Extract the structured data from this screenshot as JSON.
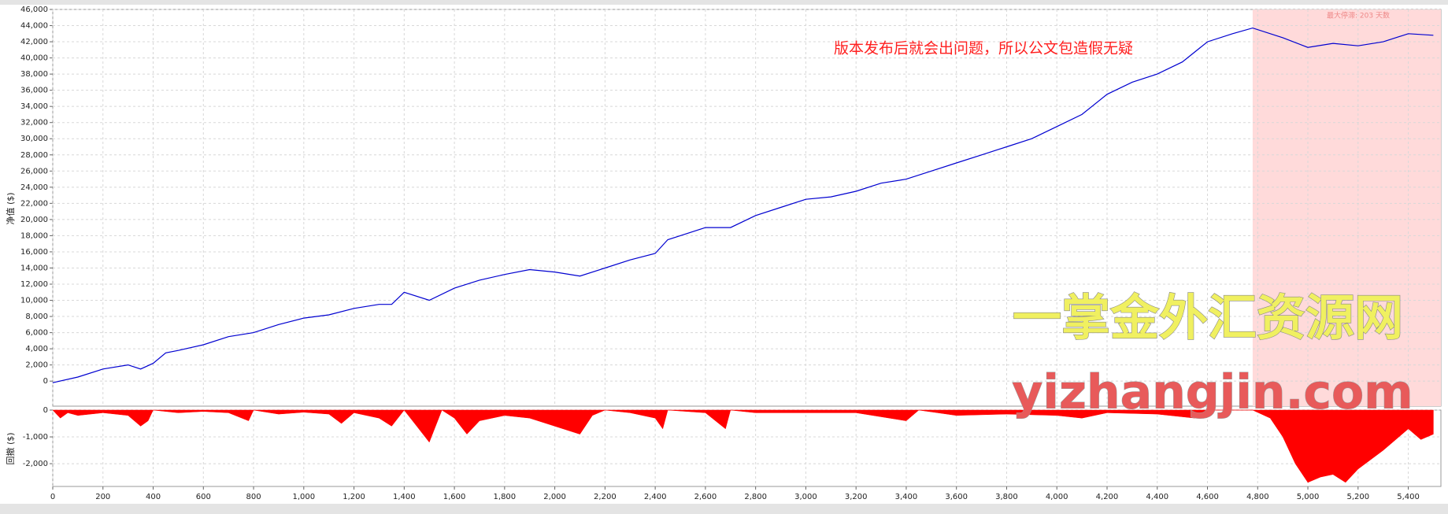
{
  "chart_data": [
    {
      "type": "line",
      "y_label": "净值 ($)",
      "annotation": "版本发布后就会出问题，所以公文包造假无疑",
      "stagnation_label": "最大停滞: 203 天数",
      "watermark": "一掌金外汇资源网",
      "watermark_url": "yizhangjin.com",
      "shaded_x": [
        4780,
        5530
      ],
      "shade_color": "#ffdada",
      "xlim": [
        0,
        5530
      ],
      "ylim": [
        -3100,
        46000
      ],
      "yticks": [
        {
          "value": 0,
          "label": "0"
        },
        {
          "value": 2000,
          "label": "2,000"
        },
        {
          "value": 4000,
          "label": "4,000"
        },
        {
          "value": 6000,
          "label": "6,000"
        },
        {
          "value": 8000,
          "label": "8,000"
        },
        {
          "value": 10000,
          "label": "10,000"
        },
        {
          "value": 12000,
          "label": "12,000"
        },
        {
          "value": 14000,
          "label": "14,000"
        },
        {
          "value": 16000,
          "label": "16,000"
        },
        {
          "value": 18000,
          "label": "18,000"
        },
        {
          "value": 20000,
          "label": "20,000"
        },
        {
          "value": 22000,
          "label": "22,000"
        },
        {
          "value": 24000,
          "label": "24,000"
        },
        {
          "value": 26000,
          "label": "26,000"
        },
        {
          "value": 28000,
          "label": "28,000"
        },
        {
          "value": 30000,
          "label": "30,000"
        },
        {
          "value": 32000,
          "label": "32,000"
        },
        {
          "value": 34000,
          "label": "34,000"
        },
        {
          "value": 36000,
          "label": "36,000"
        },
        {
          "value": 38000,
          "label": "38,000"
        },
        {
          "value": 40000,
          "label": "40,000"
        },
        {
          "value": 42000,
          "label": "42,000"
        },
        {
          "value": 44000,
          "label": "44,000"
        },
        {
          "value": 46000,
          "label": "46,000"
        }
      ],
      "grid": true,
      "x": [
        0,
        100,
        200,
        300,
        350,
        400,
        450,
        500,
        600,
        700,
        800,
        900,
        1000,
        1100,
        1200,
        1300,
        1350,
        1400,
        1500,
        1600,
        1700,
        1800,
        1900,
        2000,
        2100,
        2200,
        2300,
        2400,
        2450,
        2500,
        2600,
        2700,
        2800,
        2900,
        3000,
        3100,
        3200,
        3300,
        3400,
        3500,
        3600,
        3700,
        3800,
        3900,
        4000,
        4100,
        4200,
        4300,
        4400,
        4500,
        4600,
        4700,
        4780,
        4900,
        5000,
        5100,
        5200,
        5300,
        5400,
        5500
      ],
      "series": [
        {
          "color": "#0000d0",
          "values": [
            -200,
            500,
            1500,
            2000,
            1500,
            2200,
            3500,
            3800,
            4500,
            5500,
            6000,
            7000,
            7800,
            8200,
            9000,
            9500,
            9500,
            11000,
            10000,
            11500,
            12500,
            13200,
            13800,
            13500,
            13000,
            14000,
            15000,
            15800,
            17500,
            18000,
            19000,
            19000,
            20500,
            21500,
            22500,
            22800,
            23500,
            24500,
            25000,
            26000,
            27000,
            28000,
            29000,
            30000,
            31500,
            33000,
            35500,
            37000,
            38000,
            39500,
            42000,
            43000,
            43700,
            42500,
            41300,
            41800,
            41500,
            42000,
            43000,
            42800
          ]
        }
      ]
    },
    {
      "type": "area",
      "y_label": "回撤 ($)",
      "xlim": [
        0,
        5530
      ],
      "ylim": [
        -2850,
        0
      ],
      "yticks": [
        {
          "value": 0,
          "label": "0"
        },
        {
          "value": -1000,
          "label": "-1,000"
        },
        {
          "value": -2000,
          "label": "-2,000"
        }
      ],
      "xticks": [
        {
          "value": 0,
          "label": "0"
        },
        {
          "value": 200,
          "label": "200"
        },
        {
          "value": 400,
          "label": "400"
        },
        {
          "value": 600,
          "label": "600"
        },
        {
          "value": 800,
          "label": "800"
        },
        {
          "value": 1000,
          "label": "1,000"
        },
        {
          "value": 1200,
          "label": "1,200"
        },
        {
          "value": 1400,
          "label": "1,400"
        },
        {
          "value": 1600,
          "label": "1,600"
        },
        {
          "value": 1800,
          "label": "1,800"
        },
        {
          "value": 2000,
          "label": "2,000"
        },
        {
          "value": 2200,
          "label": "2,200"
        },
        {
          "value": 2400,
          "label": "2,400"
        },
        {
          "value": 2600,
          "label": "2,600"
        },
        {
          "value": 2800,
          "label": "2,800"
        },
        {
          "value": 3000,
          "label": "3,000"
        },
        {
          "value": 3200,
          "label": "3,200"
        },
        {
          "value": 3400,
          "label": "3,400"
        },
        {
          "value": 3600,
          "label": "3,600"
        },
        {
          "value": 3800,
          "label": "3,800"
        },
        {
          "value": 4000,
          "label": "4,000"
        },
        {
          "value": 4200,
          "label": "4,200"
        },
        {
          "value": 4400,
          "label": "4,400"
        },
        {
          "value": 4600,
          "label": "4,600"
        },
        {
          "value": 4800,
          "label": "4,800"
        },
        {
          "value": 5000,
          "label": "5,000"
        },
        {
          "value": 5200,
          "label": "5,200"
        },
        {
          "value": 5400,
          "label": "5,400"
        }
      ],
      "grid": true,
      "x": [
        0,
        30,
        60,
        100,
        150,
        200,
        300,
        350,
        380,
        400,
        500,
        600,
        700,
        780,
        800,
        900,
        1000,
        1100,
        1150,
        1200,
        1300,
        1350,
        1400,
        1450,
        1500,
        1550,
        1600,
        1650,
        1700,
        1800,
        1900,
        2000,
        2100,
        2150,
        2200,
        2300,
        2400,
        2430,
        2450,
        2600,
        2680,
        2700,
        2800,
        3000,
        3200,
        3400,
        3450,
        3600,
        3800,
        4000,
        4100,
        4200,
        4400,
        4550,
        4600,
        4780,
        4850,
        4900,
        4950,
        5000,
        5050,
        5100,
        5150,
        5200,
        5300,
        5400,
        5450,
        5500
      ],
      "series": [
        {
          "color": "#ff0000",
          "values": [
            0,
            -300,
            -100,
            -200,
            -150,
            -100,
            -200,
            -600,
            -400,
            0,
            -100,
            -50,
            -100,
            -400,
            0,
            -150,
            -80,
            -150,
            -500,
            -100,
            -300,
            -600,
            0,
            -600,
            -1200,
            0,
            -300,
            -900,
            -400,
            -200,
            -300,
            -600,
            -900,
            -200,
            0,
            -100,
            -300,
            -700,
            0,
            -100,
            -700,
            0,
            -100,
            -100,
            -100,
            -400,
            0,
            -200,
            -150,
            -200,
            -300,
            -100,
            -150,
            -300,
            0,
            0,
            -300,
            -1000,
            -2000,
            -2700,
            -2500,
            -2400,
            -2700,
            -2200,
            -1500,
            -700,
            -1100,
            -900
          ]
        }
      ]
    }
  ]
}
